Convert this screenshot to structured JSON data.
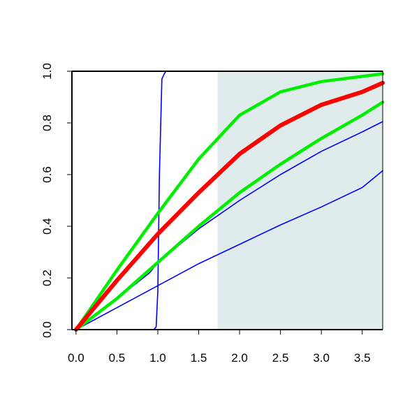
{
  "chart_data": {
    "type": "line",
    "title": "",
    "xlabel": "",
    "ylabel": "",
    "xlim": [
      -0.05,
      3.75
    ],
    "ylim": [
      0,
      1
    ],
    "x_ticks": [
      "0.0",
      "0.5",
      "1.0",
      "1.5",
      "2.0",
      "2.5",
      "3.0",
      "3.5"
    ],
    "y_ticks": [
      "0.0",
      "0.2",
      "0.4",
      "0.6",
      "0.8",
      "1.0"
    ],
    "grid": false,
    "legend": "none",
    "shaded_region": {
      "x_start": 1.73,
      "x_end": 3.75,
      "color": "#e0ecec"
    },
    "series": [
      {
        "color": "#0000ff",
        "width": "thin",
        "x": [
          0,
          0.5,
          1.0,
          1.5,
          2.0,
          2.5,
          3.0,
          3.5,
          3.75
        ],
        "y": [
          0,
          0.085,
          0.17,
          0.255,
          0.33,
          0.405,
          0.475,
          0.55,
          0.615
        ]
      },
      {
        "color": "#0000ff",
        "width": "thin",
        "x": [
          0,
          0.5,
          0.9,
          1.0,
          1.5,
          2.0,
          2.5,
          3.0,
          3.5,
          3.75
        ],
        "y": [
          0,
          0.12,
          0.22,
          0.26,
          0.39,
          0.5,
          0.6,
          0.69,
          0.765,
          0.805
        ]
      },
      {
        "color": "#0000ff",
        "width": "thin",
        "x": [
          0,
          0.95,
          0.98,
          1.0,
          1.02,
          1.05,
          1.08,
          1.1,
          1.2,
          3.75
        ],
        "y": [
          0,
          0,
          0.01,
          0.15,
          0.6,
          0.97,
          0.99,
          1.0,
          1.0,
          1.0
        ]
      },
      {
        "color": "#00ee00",
        "width": "thick",
        "x": [
          0,
          0.5,
          1.0,
          1.5,
          2.0,
          2.5,
          3.0,
          3.5,
          3.75
        ],
        "y": [
          0,
          0.12,
          0.26,
          0.4,
          0.53,
          0.64,
          0.74,
          0.83,
          0.88
        ]
      },
      {
        "color": "#00ee00",
        "width": "thick",
        "x": [
          0,
          0.5,
          1.0,
          1.5,
          2.0,
          2.5,
          3.0,
          3.5,
          3.75
        ],
        "y": [
          0,
          0.23,
          0.45,
          0.66,
          0.83,
          0.92,
          0.96,
          0.98,
          0.99
        ]
      },
      {
        "color": "#ff0000",
        "width": "thicker",
        "x": [
          0,
          0.5,
          1.0,
          1.5,
          2.0,
          2.5,
          3.0,
          3.5,
          3.75
        ],
        "y": [
          0,
          0.19,
          0.37,
          0.53,
          0.68,
          0.79,
          0.87,
          0.92,
          0.955
        ]
      }
    ]
  }
}
